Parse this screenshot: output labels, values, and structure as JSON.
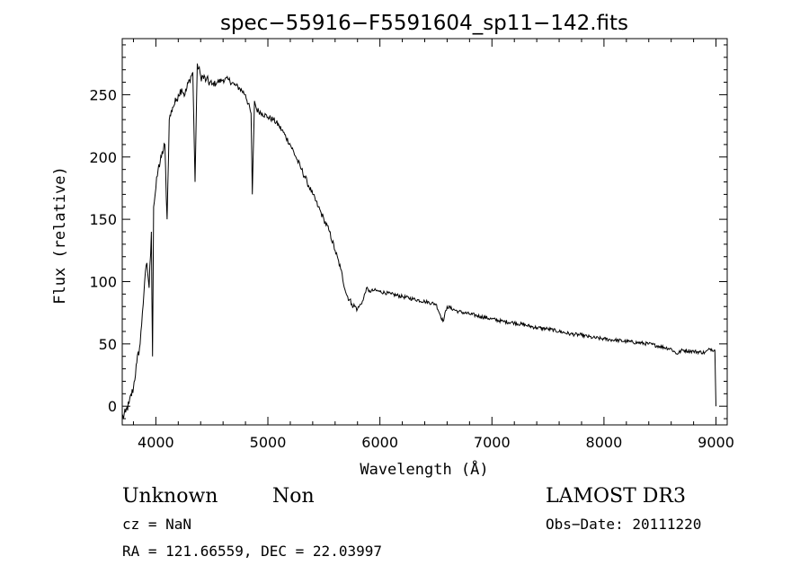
{
  "chart_data": {
    "type": "line",
    "title": "spec−55916−F5591604_sp11−142.fits",
    "xlabel": "Wavelength (Å)",
    "ylabel": "Flux (relative)",
    "xlim": [
      3700,
      9100
    ],
    "ylim": [
      -15,
      295
    ],
    "x_ticks": [
      4000,
      5000,
      6000,
      7000,
      8000,
      9000
    ],
    "y_ticks": [
      0,
      50,
      100,
      150,
      200,
      250
    ],
    "grid": false,
    "series": [
      {
        "x": [
          3700,
          3730,
          3760,
          3800,
          3830,
          3860,
          3880,
          3900,
          3920,
          3940,
          3960,
          3970,
          3980,
          4000,
          4020,
          4050,
          4080,
          4100,
          4120,
          4150,
          4180,
          4200,
          4230,
          4260,
          4300,
          4330,
          4350,
          4370,
          4400,
          4450,
          4500,
          4550,
          4600,
          4650,
          4700,
          4750,
          4800,
          4850,
          4861,
          4880,
          4900,
          4950,
          5000,
          5050,
          5100,
          5150,
          5200,
          5250,
          5300,
          5350,
          5400,
          5450,
          5500,
          5550,
          5600,
          5650,
          5700,
          5750,
          5800,
          5850,
          5880,
          5900,
          5950,
          6000,
          6100,
          6200,
          6300,
          6400,
          6500,
          6563,
          6600,
          6700,
          6800,
          6900,
          7000,
          7100,
          7200,
          7300,
          7400,
          7500,
          7600,
          7700,
          7800,
          7900,
          8000,
          8100,
          8200,
          8300,
          8400,
          8500,
          8600,
          8650,
          8700,
          8800,
          8900,
          8950,
          8990,
          9000
        ],
        "y": [
          -10,
          -5,
          2,
          15,
          35,
          50,
          75,
          100,
          115,
          95,
          140,
          40,
          160,
          175,
          190,
          200,
          210,
          150,
          230,
          240,
          245,
          250,
          255,
          250,
          262,
          268,
          180,
          275,
          265,
          262,
          258,
          260,
          262,
          262,
          258,
          255,
          250,
          235,
          170,
          245,
          238,
          235,
          232,
          230,
          225,
          218,
          210,
          200,
          190,
          180,
          170,
          160,
          150,
          140,
          125,
          110,
          90,
          82,
          78,
          85,
          95,
          92,
          93,
          92,
          90,
          88,
          86,
          84,
          82,
          68,
          80,
          76,
          74,
          72,
          70,
          68,
          67,
          65,
          63,
          62,
          60,
          58,
          57,
          55,
          54,
          53,
          52,
          51,
          50,
          48,
          46,
          42,
          45,
          44,
          43,
          46,
          45,
          0
        ]
      }
    ]
  },
  "info": {
    "class_label": "Unknown",
    "subclass_label": "Non",
    "survey": "LAMOST DR3",
    "cz": "cz = NaN",
    "obs_date": "Obs−Date: 20111220",
    "coords": "RA = 121.66559, DEC =  22.03997"
  }
}
